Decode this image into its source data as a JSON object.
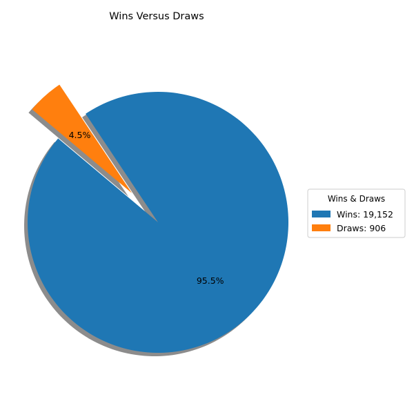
{
  "chart_data": {
    "type": "pie",
    "title": "Wins Versus Draws",
    "slices": [
      {
        "label": "Wins",
        "value": 19152,
        "percent_label": "95.5%",
        "legend_label": "Wins: 19,152",
        "color": "#1f77b4",
        "exploded": false
      },
      {
        "label": "Draws",
        "value": 906,
        "percent_label": "4.5%",
        "legend_label": "Draws: 906",
        "color": "#ff7f0e",
        "exploded": true
      }
    ],
    "legend": {
      "title": "Wins & Draws",
      "placement": "right"
    },
    "shadow": true,
    "start_angle_deg": 140
  }
}
